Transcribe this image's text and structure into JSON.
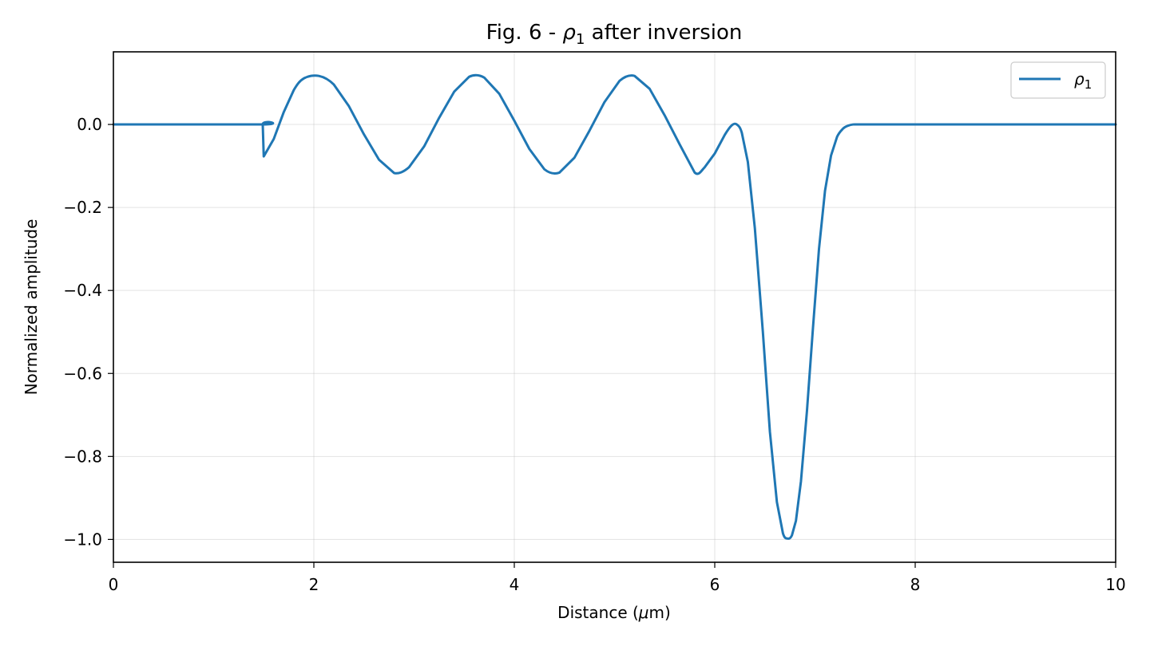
{
  "chart_data": {
    "type": "line",
    "title_prefix": "Fig. 6 - ",
    "title_symbol": "ρ",
    "title_subscript": "1",
    "title_suffix": " after inversion",
    "xlabel_prefix": "Distance (",
    "xlabel_symbol": "μ",
    "xlabel_suffix": "m)",
    "ylabel": "Normalized amplitude",
    "xlim": [
      0,
      10
    ],
    "ylim": [
      -1.055,
      0.175
    ],
    "xticks": [
      0,
      2,
      4,
      6,
      8,
      10
    ],
    "xtick_labels": [
      "0",
      "2",
      "4",
      "6",
      "8",
      "10"
    ],
    "yticks": [
      0.0,
      -0.2,
      -0.4,
      -0.6,
      -0.8,
      -1.0
    ],
    "ytick_labels": [
      "0.0",
      "−0.2",
      "−0.4",
      "−0.6",
      "−0.8",
      "−1.0"
    ],
    "grid": true,
    "legend_position": "top-right",
    "series": [
      {
        "name_symbol": "ρ",
        "name_subscript": "1",
        "color": "#1f77b4",
        "x": [
          0,
          1.48,
          1.49,
          1.5,
          1.6,
          1.7,
          1.8,
          1.9,
          2.05,
          2.2,
          2.35,
          2.5,
          2.65,
          2.8,
          2.95,
          3.1,
          3.25,
          3.4,
          3.55,
          3.7,
          3.85,
          4.0,
          4.15,
          4.3,
          4.45,
          4.6,
          4.75,
          4.9,
          5.05,
          5.2,
          5.35,
          5.5,
          5.65,
          5.8,
          5.9,
          6.0,
          6.1,
          6.17,
          6.22,
          6.27,
          6.33,
          6.4,
          6.48,
          6.55,
          6.62,
          6.68,
          6.73,
          6.77,
          6.81,
          6.86,
          6.92,
          6.98,
          7.04,
          7.1,
          7.16,
          7.22,
          7.28,
          7.33,
          7.38,
          7.45,
          7.6,
          8.0,
          9.0,
          10.0
        ],
        "y": [
          0.0,
          0.0,
          0.0,
          -0.077,
          -0.035,
          0.03,
          0.083,
          0.111,
          0.117,
          0.096,
          0.044,
          -0.024,
          -0.085,
          -0.117,
          -0.103,
          -0.053,
          0.016,
          0.079,
          0.115,
          0.113,
          0.074,
          0.009,
          -0.059,
          -0.108,
          -0.116,
          -0.08,
          -0.015,
          0.054,
          0.105,
          0.117,
          0.086,
          0.022,
          -0.048,
          -0.116,
          -0.103,
          -0.07,
          -0.025,
          -0.002,
          0.0,
          -0.02,
          -0.09,
          -0.25,
          -0.5,
          -0.74,
          -0.91,
          -0.985,
          -0.998,
          -0.99,
          -0.955,
          -0.86,
          -0.69,
          -0.49,
          -0.3,
          -0.16,
          -0.075,
          -0.03,
          -0.01,
          -0.003,
          0.0,
          0.0,
          0.0,
          0.0,
          0.0,
          0.0
        ]
      }
    ]
  }
}
